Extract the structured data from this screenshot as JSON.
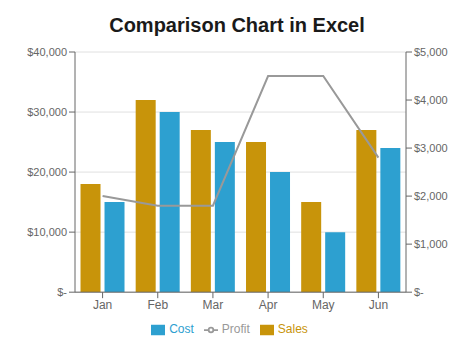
{
  "chart_data": {
    "type": "bar",
    "title": "Comparison Chart in Excel",
    "categories": [
      "Jan",
      "Feb",
      "Mar",
      "Apr",
      "May",
      "Jun"
    ],
    "series": [
      {
        "name": "Sales",
        "color": "#c8940a",
        "values": [
          18000,
          32000,
          27000,
          25000,
          15000,
          27000
        ]
      },
      {
        "name": "Cost",
        "color": "#2da0d0",
        "values": [
          15000,
          30000,
          25000,
          20000,
          10000,
          24000
        ]
      },
      {
        "name": "Profit",
        "type": "line",
        "axis": "y2",
        "color": "#999999",
        "values": [
          2000,
          1800,
          1800,
          4500,
          4500,
          2800
        ]
      }
    ],
    "ylim": [
      0,
      40000
    ],
    "yticks": [
      {
        "value": 0,
        "label": "$-"
      },
      {
        "value": 10000,
        "label": "$10,000"
      },
      {
        "value": 20000,
        "label": "$20,000"
      },
      {
        "value": 30000,
        "label": "$30,000"
      },
      {
        "value": 40000,
        "label": "$40,000"
      }
    ],
    "y2lim": [
      0,
      5000
    ],
    "y2ticks": [
      {
        "value": 0,
        "label": "$-"
      },
      {
        "value": 1000,
        "label": "$1,000"
      },
      {
        "value": 2000,
        "label": "$2,000"
      },
      {
        "value": 3000,
        "label": "$3,000"
      },
      {
        "value": 4000,
        "label": "$4,000"
      },
      {
        "value": 5000,
        "label": "$5,000"
      }
    ],
    "grid": true,
    "legend": "bottom"
  }
}
